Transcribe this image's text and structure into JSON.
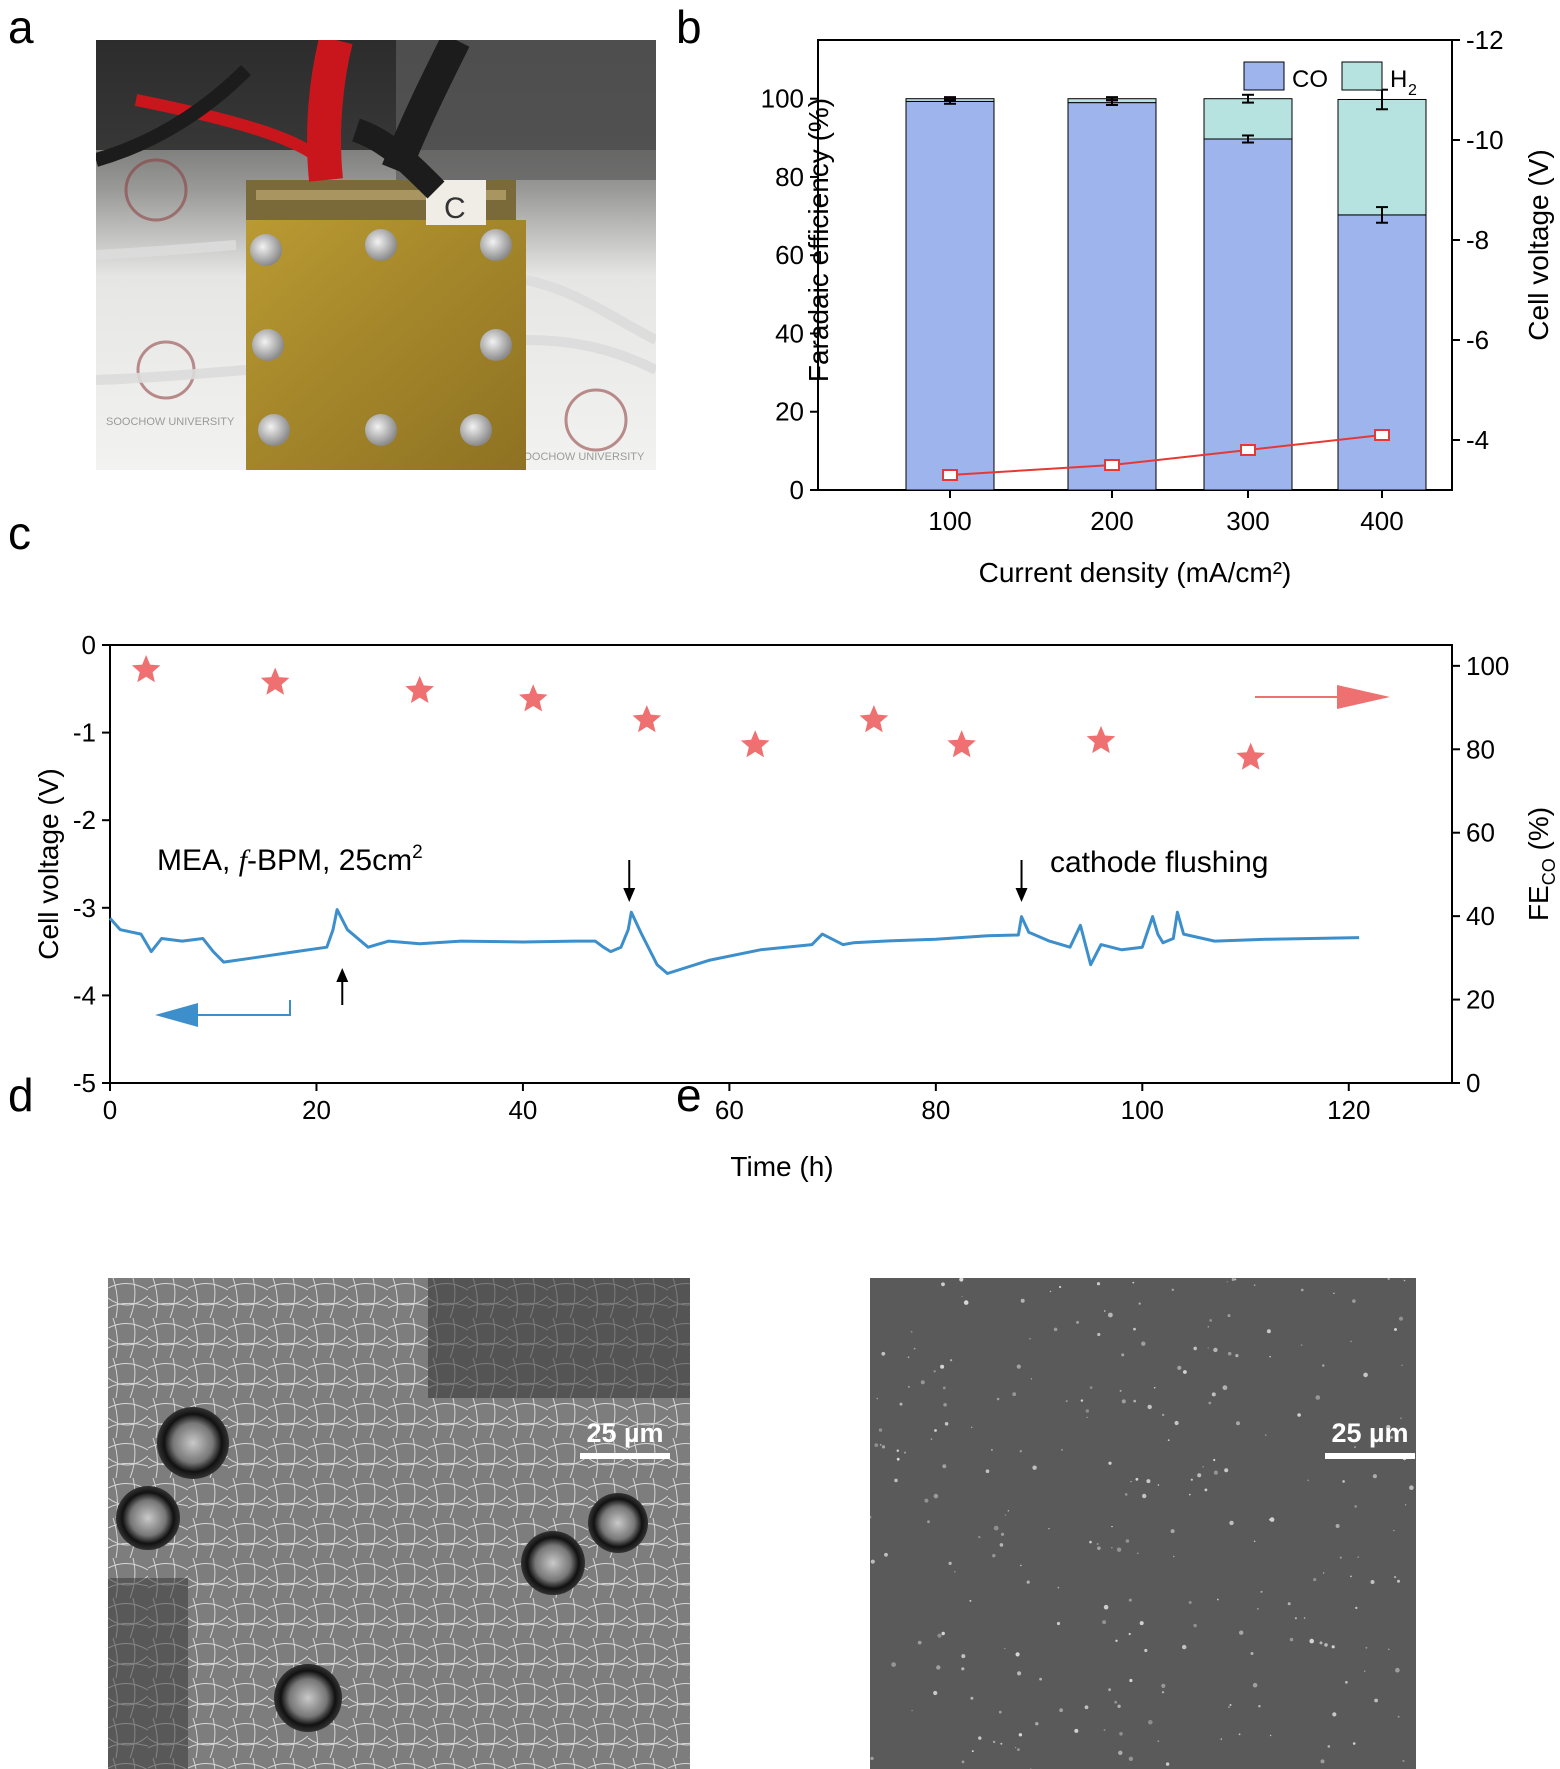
{
  "panels": {
    "a": "a",
    "b": "b",
    "c": "c",
    "d": "d",
    "e": "e"
  },
  "photo_a": {
    "brand_text": "SOOCHOW UNIVERSITY",
    "block_letter": "C"
  },
  "colors": {
    "co_bar": "#9db4ec",
    "h2_bar": "#b6e2e0",
    "voltage_line": "#e53935",
    "stability_line": "#3d8fcc",
    "fe_star": "#ee7070"
  },
  "chart_data": [
    {
      "type": "bar",
      "panel": "b",
      "categories": [
        "100",
        "200",
        "300",
        "400"
      ],
      "series": [
        {
          "name": "CO",
          "values": [
            99.3,
            99.0,
            89.7,
            70.3
          ],
          "errors": [
            0.6,
            0.6,
            0.9,
            2.0
          ]
        },
        {
          "name": "H2",
          "values": [
            0.7,
            1.0,
            10.3,
            29.5
          ],
          "errors": [
            0.4,
            0.4,
            1.0,
            2.5
          ]
        },
        {
          "name": "Cell voltage",
          "values": [
            -3.3,
            -3.5,
            -3.8,
            -4.1
          ],
          "errors": [
            0.05,
            0.05,
            0.05,
            0.08
          ],
          "axis": "right"
        }
      ],
      "xlabel": "Current density (mA/cm²)",
      "ylabel": "Faradaic efficiency (%)",
      "ylabel_right": "Cell voltage (V)",
      "ylim": [
        0,
        115
      ],
      "ylim_right": [
        -3,
        -12
      ],
      "yticks": [
        "0",
        "20",
        "40",
        "60",
        "80",
        "100"
      ],
      "yticks_right": [
        "-4",
        "-6",
        "-8",
        "-10",
        "-12"
      ],
      "legend": [
        "CO",
        "H",
        "2"
      ],
      "legend_position": "top-right"
    },
    {
      "type": "line",
      "panel": "c",
      "xlabel": "Time (h)",
      "ylabel": "Cell voltage (V)",
      "ylabel_right": "FE",
      "ylabel_right_sub": "CO",
      "ylabel_right_unit": "(%)",
      "xlim": [
        0,
        130
      ],
      "ylim": [
        -5,
        0
      ],
      "ylim_right": [
        0,
        105
      ],
      "xticks": [
        "0",
        "20",
        "40",
        "60",
        "80",
        "100",
        "120"
      ],
      "yticks": [
        "0",
        "-1",
        "-2",
        "-3",
        "-4",
        "-5"
      ],
      "yticks_right": [
        "0",
        "20",
        "40",
        "60",
        "80",
        "100"
      ],
      "annotation_label": "MEA, ",
      "annotation_italic": "f",
      "annotation_rest": "-BPM, 25cm",
      "annotation_sup": "2",
      "annotation_flush": "cathode flushing",
      "voltage": {
        "x": [
          0,
          1,
          3,
          4,
          5,
          7,
          9,
          10,
          11,
          14,
          18,
          21,
          21.6,
          22,
          23,
          25,
          27,
          30,
          34,
          40,
          45,
          47,
          47.8,
          48.5,
          49.5,
          50.2,
          50.5,
          51.5,
          53,
          54,
          58,
          63,
          68,
          69,
          71,
          72,
          75,
          80,
          85,
          88,
          88.3,
          89,
          91,
          93,
          94,
          95,
          96,
          98,
          100,
          101,
          101.5,
          102,
          103,
          103.4,
          104,
          107,
          112,
          121
        ],
        "y": [
          -3.12,
          -3.25,
          -3.3,
          -3.5,
          -3.35,
          -3.38,
          -3.35,
          -3.5,
          -3.62,
          -3.57,
          -3.5,
          -3.45,
          -3.25,
          -3.02,
          -3.25,
          -3.45,
          -3.38,
          -3.41,
          -3.38,
          -3.39,
          -3.38,
          -3.38,
          -3.45,
          -3.5,
          -3.45,
          -3.25,
          -3.05,
          -3.3,
          -3.65,
          -3.75,
          -3.6,
          -3.48,
          -3.42,
          -3.3,
          -3.42,
          -3.4,
          -3.38,
          -3.36,
          -3.32,
          -3.31,
          -3.1,
          -3.28,
          -3.38,
          -3.45,
          -3.2,
          -3.65,
          -3.42,
          -3.48,
          -3.45,
          -3.1,
          -3.3,
          -3.4,
          -3.35,
          -3.05,
          -3.3,
          -3.38,
          -3.36,
          -3.34
        ]
      },
      "fe_co": {
        "x": [
          3.5,
          16,
          30,
          41,
          52,
          62.5,
          74,
          82.5,
          96,
          110.5
        ],
        "y": [
          99,
          96,
          94,
          92,
          87,
          81,
          87,
          81,
          82,
          78
        ]
      },
      "events_down": [
        50.3,
        88.3
      ],
      "events_up": [
        22.5
      ],
      "legend_position": "none"
    }
  ],
  "sem_d": {
    "scale_label": "25 µm"
  },
  "sem_e": {
    "scale_label": "25 µm"
  }
}
